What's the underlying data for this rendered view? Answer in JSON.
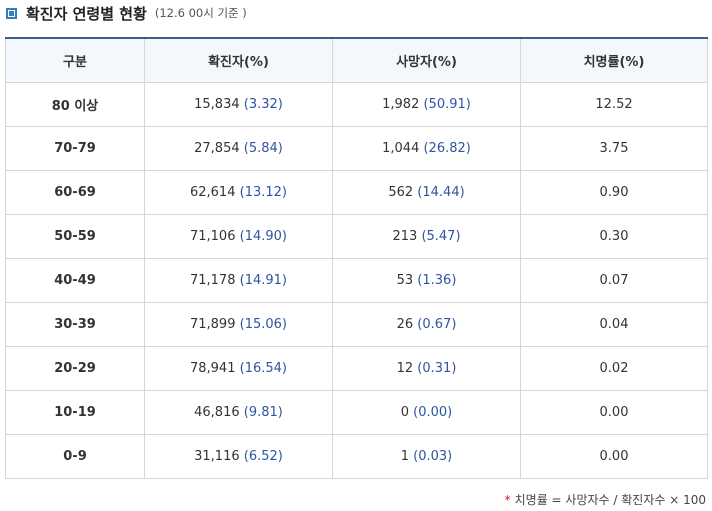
{
  "header": {
    "title": "확진자 연령별 현황",
    "note": "(12.6 00시 기준 )"
  },
  "table": {
    "columns": [
      "구분",
      "확진자(%)",
      "사망자(%)",
      "치명률(%)"
    ],
    "rows": [
      {
        "age": "80 이상",
        "cases": "15,834",
        "cases_pct": "(3.32)",
        "deaths": "1,982",
        "deaths_pct": "(50.91)",
        "fatality": "12.52"
      },
      {
        "age": "70-79",
        "cases": "27,854",
        "cases_pct": "(5.84)",
        "deaths": "1,044",
        "deaths_pct": "(26.82)",
        "fatality": "3.75"
      },
      {
        "age": "60-69",
        "cases": "62,614",
        "cases_pct": "(13.12)",
        "deaths": "562",
        "deaths_pct": "(14.44)",
        "fatality": "0.90"
      },
      {
        "age": "50-59",
        "cases": "71,106",
        "cases_pct": "(14.90)",
        "deaths": "213",
        "deaths_pct": "(5.47)",
        "fatality": "0.30"
      },
      {
        "age": "40-49",
        "cases": "71,178",
        "cases_pct": "(14.91)",
        "deaths": "53",
        "deaths_pct": "(1.36)",
        "fatality": "0.07"
      },
      {
        "age": "30-39",
        "cases": "71,899",
        "cases_pct": "(15.06)",
        "deaths": "26",
        "deaths_pct": "(0.67)",
        "fatality": "0.04"
      },
      {
        "age": "20-29",
        "cases": "78,941",
        "cases_pct": "(16.54)",
        "deaths": "12",
        "deaths_pct": "(0.31)",
        "fatality": "0.02"
      },
      {
        "age": "10-19",
        "cases": "46,816",
        "cases_pct": "(9.81)",
        "deaths": "0",
        "deaths_pct": "(0.00)",
        "fatality": "0.00"
      },
      {
        "age": "0-9",
        "cases": "31,116",
        "cases_pct": "(6.52)",
        "deaths": "1",
        "deaths_pct": "(0.03)",
        "fatality": "0.00"
      }
    ]
  },
  "footnote": {
    "star": "*",
    "text": "치명률 = 사망자수 / 확진자수 × 100"
  },
  "colors": {
    "accent": "#2f7fc1",
    "header_border": "#3a5d8c",
    "value_blue": "#2e55a0",
    "footnote_star": "#d0141c"
  }
}
